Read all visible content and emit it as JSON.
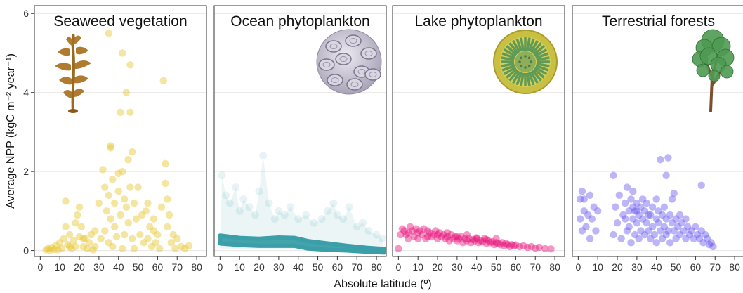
{
  "chart_data": {
    "type": "scatter",
    "xlabel": "Absolute latitude (º)",
    "ylabel": "Average NPP (kgC m⁻² year⁻¹)",
    "xlim": [
      -3,
      85
    ],
    "ylim": [
      -0.15,
      6.2
    ],
    "x_ticks": [
      "0",
      "10",
      "20",
      "30",
      "40",
      "50",
      "60",
      "70",
      "80"
    ],
    "y_ticks": [
      "0",
      "2",
      "4",
      "6"
    ],
    "grid": true,
    "panels": [
      {
        "title": "Seaweed vegetation",
        "color": "#e6c52c",
        "icon": "seaweed-icon",
        "points": [
          [
            3,
            0.02
          ],
          [
            4,
            0.05
          ],
          [
            5,
            0.01
          ],
          [
            6,
            0.08
          ],
          [
            7,
            0.03
          ],
          [
            8,
            0.12
          ],
          [
            9,
            0.02
          ],
          [
            10,
            0.2
          ],
          [
            11,
            0.05
          ],
          [
            12,
            0.3
          ],
          [
            13,
            1.25
          ],
          [
            13,
            0.6
          ],
          [
            14,
            0.15
          ],
          [
            15,
            0.4
          ],
          [
            16,
            0.05
          ],
          [
            17,
            0.25
          ],
          [
            18,
            0.7
          ],
          [
            18,
            0.1
          ],
          [
            19,
            0.9
          ],
          [
            20,
            1.1
          ],
          [
            20,
            0.35
          ],
          [
            21,
            0.6
          ],
          [
            22,
            0.1
          ],
          [
            23,
            0.3
          ],
          [
            24,
            0.05
          ],
          [
            25,
            0.2
          ],
          [
            26,
            0.4
          ],
          [
            27,
            0.02
          ],
          [
            28,
            0.1
          ],
          [
            30,
            1.2
          ],
          [
            31,
            0.3
          ],
          [
            32,
            2.05
          ],
          [
            33,
            1.6
          ],
          [
            33,
            0.5
          ],
          [
            34,
            1.0
          ],
          [
            35,
            1.4
          ],
          [
            35,
            0.2
          ],
          [
            36,
            2.6
          ],
          [
            36,
            0.8
          ],
          [
            37,
            1.8
          ],
          [
            37,
            0.1
          ],
          [
            38,
            0.6
          ],
          [
            38,
            1.2
          ],
          [
            39,
            0.35
          ],
          [
            40,
            1.5
          ],
          [
            41,
            0.9
          ],
          [
            41,
            3.5
          ],
          [
            42,
            2.0
          ],
          [
            42,
            0.05
          ],
          [
            43,
            1.3
          ],
          [
            43,
            0.4
          ],
          [
            44,
            4.0
          ],
          [
            44,
            1.1
          ],
          [
            45,
            2.3
          ],
          [
            45,
            0.7
          ],
          [
            46,
            3.5
          ],
          [
            46,
            1.6
          ],
          [
            47,
            2.5
          ],
          [
            47,
            0.3
          ],
          [
            48,
            1.2
          ],
          [
            48,
            0.05
          ],
          [
            49,
            0.8
          ],
          [
            50,
            1.6
          ],
          [
            51,
            0.4
          ],
          [
            52,
            0.9
          ],
          [
            53,
            0.2
          ],
          [
            54,
            1.0
          ],
          [
            55,
            0.3
          ],
          [
            56,
            0.6
          ],
          [
            57,
            0.1
          ],
          [
            58,
            0.5
          ],
          [
            59,
            0.2
          ],
          [
            60,
            0.4
          ],
          [
            61,
            0.05
          ],
          [
            62,
            1.1
          ],
          [
            63,
            4.3
          ],
          [
            64,
            2.2
          ],
          [
            64,
            1.7
          ],
          [
            65,
            1.3
          ],
          [
            65,
            0.6
          ],
          [
            66,
            0.9
          ],
          [
            67,
            0.2
          ],
          [
            68,
            0.4
          ],
          [
            69,
            0.05
          ],
          [
            70,
            0.3
          ],
          [
            72,
            0.1
          ],
          [
            74,
            0.05
          ],
          [
            76,
            0.12
          ],
          [
            35,
            5.5
          ],
          [
            42,
            5.0
          ],
          [
            46,
            4.7
          ],
          [
            40,
            1.95
          ],
          [
            36,
            2.65
          ],
          [
            28,
            0.5
          ],
          [
            22,
            0.3
          ],
          [
            15,
            0.1
          ],
          [
            55,
            1.2
          ],
          [
            58,
            0.8
          ]
        ]
      },
      {
        "title": "Ocean phytoplankton",
        "color": "#3a9fa8",
        "icon": "coccolithophore-icon",
        "points": [
          [
            1,
            1.9
          ],
          [
            3,
            1.4
          ],
          [
            5,
            1.2
          ],
          [
            8,
            1.6
          ],
          [
            10,
            1.0
          ],
          [
            12,
            1.3
          ],
          [
            15,
            1.1
          ],
          [
            18,
            0.9
          ],
          [
            20,
            1.5
          ],
          [
            22,
            2.4
          ],
          [
            25,
            1.2
          ],
          [
            28,
            0.8
          ],
          [
            30,
            1.0
          ],
          [
            33,
            0.9
          ],
          [
            36,
            1.1
          ],
          [
            40,
            0.8
          ],
          [
            44,
            0.9
          ],
          [
            48,
            0.7
          ],
          [
            52,
            0.8
          ],
          [
            55,
            1.0
          ],
          [
            58,
            1.2
          ],
          [
            60,
            0.9
          ],
          [
            63,
            0.8
          ],
          [
            66,
            1.1
          ],
          [
            70,
            0.6
          ],
          [
            73,
            0.7
          ],
          [
            76,
            0.5
          ],
          [
            80,
            0.4
          ],
          [
            83,
            0.3
          ]
        ]
      },
      {
        "title": "Lake phytoplankton",
        "color": "#e8197f",
        "icon": "diatom-icon",
        "points": [
          [
            0,
            0.05
          ],
          [
            1,
            0.4
          ],
          [
            2,
            0.55
          ],
          [
            3,
            0.5
          ],
          [
            4,
            0.4
          ],
          [
            5,
            0.45
          ],
          [
            6,
            0.6
          ],
          [
            7,
            0.5
          ],
          [
            8,
            0.35
          ],
          [
            9,
            0.55
          ],
          [
            10,
            0.45
          ],
          [
            11,
            0.5
          ],
          [
            12,
            0.4
          ],
          [
            13,
            0.55
          ],
          [
            14,
            0.3
          ],
          [
            15,
            0.5
          ],
          [
            16,
            0.45
          ],
          [
            17,
            0.35
          ],
          [
            18,
            0.4
          ],
          [
            19,
            0.5
          ],
          [
            20,
            0.3
          ],
          [
            21,
            0.45
          ],
          [
            22,
            0.35
          ],
          [
            23,
            0.4
          ],
          [
            24,
            0.3
          ],
          [
            25,
            0.35
          ],
          [
            26,
            0.25
          ],
          [
            27,
            0.4
          ],
          [
            28,
            0.3
          ],
          [
            29,
            0.35
          ],
          [
            30,
            0.25
          ],
          [
            31,
            0.3
          ],
          [
            32,
            0.35
          ],
          [
            33,
            0.2
          ],
          [
            34,
            0.3
          ],
          [
            35,
            0.25
          ],
          [
            36,
            0.3
          ],
          [
            37,
            0.2
          ],
          [
            38,
            0.28
          ],
          [
            39,
            0.25
          ],
          [
            40,
            0.3
          ],
          [
            41,
            0.2
          ],
          [
            42,
            0.25
          ],
          [
            43,
            0.22
          ],
          [
            44,
            0.3
          ],
          [
            45,
            0.18
          ],
          [
            46,
            0.25
          ],
          [
            47,
            0.2
          ],
          [
            48,
            0.22
          ],
          [
            49,
            0.15
          ],
          [
            50,
            0.2
          ],
          [
            51,
            0.18
          ],
          [
            52,
            0.15
          ],
          [
            53,
            0.2
          ],
          [
            54,
            0.12
          ],
          [
            55,
            0.18
          ],
          [
            56,
            0.15
          ],
          [
            57,
            0.1
          ],
          [
            58,
            0.15
          ],
          [
            59,
            0.12
          ],
          [
            60,
            0.14
          ],
          [
            62,
            0.1
          ],
          [
            64,
            0.12
          ],
          [
            66,
            0.08
          ],
          [
            68,
            0.1
          ],
          [
            70,
            0.06
          ],
          [
            72,
            0.08
          ],
          [
            75,
            0.05
          ],
          [
            78,
            0.04
          ],
          [
            10,
            0.3
          ],
          [
            15,
            0.35
          ],
          [
            20,
            0.4
          ],
          [
            25,
            0.45
          ],
          [
            30,
            0.35
          ],
          [
            35,
            0.4
          ],
          [
            40,
            0.32
          ],
          [
            45,
            0.28
          ],
          [
            50,
            0.3
          ],
          [
            5,
            0.3
          ]
        ]
      },
      {
        "title": "Terrestrial forests",
        "color": "#6b5cf0",
        "icon": "tree-icon",
        "points": [
          [
            1,
            1.3
          ],
          [
            1,
            0.8
          ],
          [
            2,
            1.5
          ],
          [
            2,
            0.5
          ],
          [
            3,
            1.0
          ],
          [
            3,
            1.3
          ],
          [
            4,
            0.6
          ],
          [
            5,
            0.9
          ],
          [
            6,
            1.4
          ],
          [
            6,
            0.3
          ],
          [
            7,
            0.8
          ],
          [
            8,
            1.1
          ],
          [
            9,
            0.5
          ],
          [
            10,
            1.0
          ],
          [
            18,
            1.9
          ],
          [
            18,
            0.4
          ],
          [
            19,
            1.1
          ],
          [
            20,
            0.7
          ],
          [
            21,
            1.4
          ],
          [
            22,
            0.3
          ],
          [
            23,
            0.9
          ],
          [
            24,
            1.2
          ],
          [
            25,
            0.5
          ],
          [
            25,
            1.6
          ],
          [
            26,
            1.0
          ],
          [
            26,
            0.6
          ],
          [
            27,
            1.3
          ],
          [
            27,
            0.2
          ],
          [
            28,
            0.8
          ],
          [
            28,
            1.5
          ],
          [
            29,
            1.0
          ],
          [
            29,
            0.4
          ],
          [
            30,
            1.2
          ],
          [
            30,
            0.7
          ],
          [
            31,
            0.9
          ],
          [
            31,
            0.3
          ],
          [
            32,
            1.1
          ],
          [
            32,
            0.5
          ],
          [
            33,
            0.8
          ],
          [
            34,
            1.0
          ],
          [
            34,
            0.4
          ],
          [
            35,
            0.7
          ],
          [
            35,
            1.2
          ],
          [
            36,
            0.5
          ],
          [
            37,
            0.9
          ],
          [
            37,
            0.3
          ],
          [
            38,
            0.6
          ],
          [
            38,
            1.1
          ],
          [
            39,
            0.4
          ],
          [
            40,
            0.8
          ],
          [
            40,
            0.2
          ],
          [
            41,
            0.7
          ],
          [
            41,
            1.0
          ],
          [
            42,
            2.3
          ],
          [
            42,
            0.5
          ],
          [
            43,
            0.9
          ],
          [
            43,
            0.3
          ],
          [
            44,
            0.6
          ],
          [
            44,
            1.1
          ],
          [
            45,
            0.4
          ],
          [
            45,
            0.8
          ],
          [
            46,
            2.35
          ],
          [
            46,
            0.5
          ],
          [
            47,
            0.9
          ],
          [
            47,
            0.2
          ],
          [
            48,
            0.7
          ],
          [
            48,
            1.3
          ],
          [
            49,
            0.5
          ],
          [
            50,
            0.8
          ],
          [
            50,
            0.3
          ],
          [
            51,
            0.6
          ],
          [
            52,
            0.9
          ],
          [
            52,
            0.4
          ],
          [
            53,
            0.7
          ],
          [
            54,
            0.5
          ],
          [
            55,
            0.8
          ],
          [
            55,
            0.3
          ],
          [
            56,
            0.6
          ],
          [
            57,
            0.4
          ],
          [
            58,
            0.5
          ],
          [
            59,
            0.3
          ],
          [
            60,
            0.6
          ],
          [
            61,
            0.4
          ],
          [
            62,
            0.3
          ],
          [
            63,
            0.5
          ],
          [
            64,
            0.2
          ],
          [
            65,
            0.4
          ],
          [
            66,
            0.3
          ],
          [
            67,
            0.15
          ],
          [
            68,
            0.2
          ],
          [
            69,
            0.1
          ],
          [
            49,
            1.45
          ],
          [
            45,
            1.9
          ],
          [
            63,
            1.65
          ],
          [
            30,
            1.0
          ],
          [
            33,
            1.3
          ],
          [
            36,
            0.9
          ],
          [
            28,
            1.1
          ],
          [
            24,
            0.8
          ],
          [
            40,
            1.3
          ]
        ]
      }
    ]
  }
}
